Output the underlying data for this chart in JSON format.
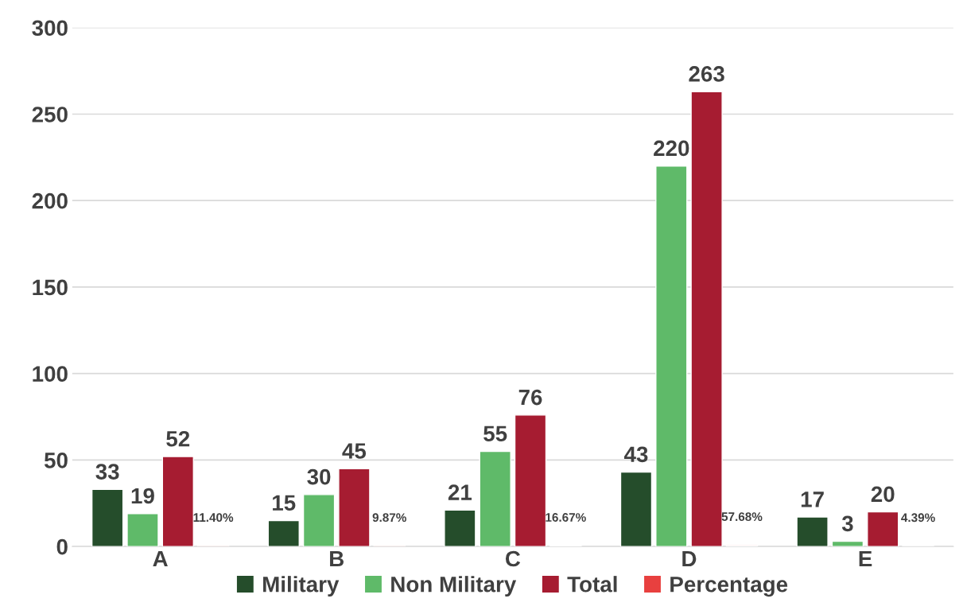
{
  "chart_data": {
    "type": "bar",
    "categories": [
      "A",
      "B",
      "C",
      "D",
      "E"
    ],
    "series": [
      {
        "name": "Military",
        "color": "#254d2b",
        "values": [
          33,
          15,
          21,
          43,
          17
        ],
        "value_labels": [
          "33",
          "15",
          "21",
          "43",
          "17"
        ]
      },
      {
        "name": "Non Military",
        "color": "#5fba69",
        "values": [
          19,
          30,
          55,
          220,
          3
        ],
        "value_labels": [
          "19",
          "30",
          "55",
          "220",
          "3"
        ]
      },
      {
        "name": "Total",
        "color": "#a61c31",
        "values": [
          52,
          45,
          76,
          263,
          20
        ],
        "value_labels": [
          "52",
          "45",
          "76",
          "263",
          "20"
        ]
      },
      {
        "name": "Percentage",
        "color": "#e8403f",
        "values": [
          0.114,
          0.0987,
          0.1667,
          0.5768,
          0.0439
        ],
        "value_labels": [
          "11.40%",
          "9.87%",
          "16.67%",
          "57.68%",
          "4.39%"
        ]
      }
    ],
    "ylim": [
      0,
      300
    ],
    "yticks": [
      0,
      50,
      100,
      150,
      200,
      250,
      300
    ],
    "grid": "y",
    "legend": "bottom"
  }
}
